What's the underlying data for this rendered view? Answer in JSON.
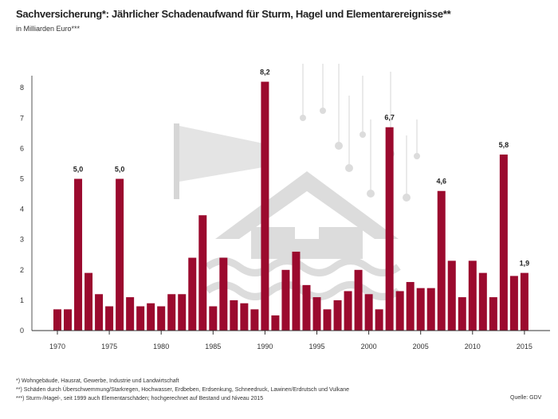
{
  "chart_data": {
    "type": "bar",
    "title": "Sachversicherung*: Jährlicher Schadenaufwand für Sturm, Hagel und Elementarereignisse**",
    "subtitle": "in Milliarden Euro***",
    "xlabel": "",
    "ylabel": "",
    "ylim": [
      0,
      8.5
    ],
    "yticks": [
      "0",
      "1",
      "2",
      "3",
      "4",
      "5",
      "6",
      "7",
      "8"
    ],
    "xticks": [
      "1970",
      "1975",
      "1980",
      "1985",
      "1990",
      "1995",
      "2000",
      "2005",
      "2010",
      "2015"
    ],
    "categories": [
      1970,
      1971,
      1972,
      1973,
      1974,
      1975,
      1976,
      1977,
      1978,
      1979,
      1980,
      1981,
      1982,
      1983,
      1984,
      1985,
      1986,
      1987,
      1988,
      1989,
      1990,
      1991,
      1992,
      1993,
      1994,
      1995,
      1996,
      1997,
      1998,
      1999,
      2000,
      2001,
      2002,
      2003,
      2004,
      2005,
      2006,
      2007,
      2008,
      2009,
      2010,
      2011,
      2012,
      2013,
      2014,
      2015
    ],
    "values": [
      0.7,
      0.7,
      5.0,
      1.9,
      1.2,
      0.8,
      5.0,
      1.1,
      0.8,
      0.9,
      0.8,
      1.2,
      1.2,
      2.4,
      3.8,
      0.8,
      2.4,
      1.0,
      0.9,
      0.7,
      8.2,
      0.5,
      2.0,
      2.6,
      1.5,
      1.1,
      0.7,
      1.0,
      1.3,
      2.0,
      1.2,
      0.7,
      6.7,
      1.3,
      1.6,
      1.4,
      1.4,
      4.6,
      2.3,
      1.1,
      2.3,
      1.9,
      1.1,
      5.8,
      1.8,
      1.9
    ],
    "data_labels": [
      {
        "year": 1972,
        "text": "5,0"
      },
      {
        "year": 1976,
        "text": "5,0"
      },
      {
        "year": 1990,
        "text": "8,2"
      },
      {
        "year": 2002,
        "text": "6,7"
      },
      {
        "year": 2007,
        "text": "4,6"
      },
      {
        "year": 2013,
        "text": "5,8"
      },
      {
        "year": 2015,
        "text": "1,9"
      }
    ],
    "bar_color": "#9b0a2e",
    "grid": false
  },
  "footnotes": [
    "*) Wohngebäude, Hausrat, Gewerbe, Industrie und Landwirtschaft",
    "**) Schäden durch Überschwemmung/Starkregen, Hochwasser, Erdbeben, Erdsenkung, Schneedruck, Lawinen/Erdrutsch und Vulkane",
    "***) Sturm-/Hagel-, seit 1999 auch Elementarschäden; hochgerechnet auf Bestand und Niveau 2015"
  ],
  "source": "Quelle: GDV"
}
